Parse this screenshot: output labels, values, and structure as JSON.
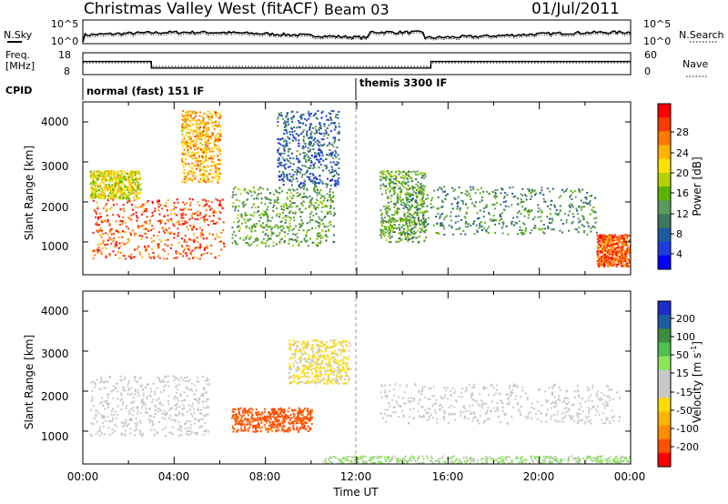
{
  "header": {
    "station": "Christmas Valley West (fitACF)",
    "beam": "Beam 03",
    "date": "01/Jul/2011"
  },
  "panels": {
    "noise": {
      "left_label": "N.Sky",
      "right_label": "N.Search",
      "ticks_left": [
        "10^5",
        "10^0"
      ],
      "ticks_right": [
        "10^5",
        "10^0"
      ]
    },
    "freq": {
      "left_label_1": "Freq.",
      "left_label_2": "[MHz]",
      "ticks_left": [
        "18",
        "8"
      ],
      "right_label": "Nave",
      "ticks_right": [
        "60",
        "0"
      ]
    },
    "cpid": {
      "label": "CPID",
      "modes": [
        "normal (fast) 151 IF",
        "themis 3300 IF"
      ]
    }
  },
  "axes": {
    "ylabel": "Slant Range [km]",
    "xlabel": "Time UT",
    "y_ticks": [
      "4000",
      "3000",
      "2000",
      "1000"
    ],
    "x_ticks": [
      "00:00",
      "04:00",
      "08:00",
      "12:00",
      "16:00",
      "20:00",
      "00:00"
    ]
  },
  "power_scale": {
    "label": "Power [dB]",
    "ticks": [
      "28",
      "24",
      "20",
      "16",
      "12",
      "8",
      "4"
    ],
    "colors": [
      "#ff0000",
      "#f63c00",
      "#ff7800",
      "#ffb400",
      "#ffe100",
      "#b4d200",
      "#5ab400",
      "#5a9b5a",
      "#3c785a",
      "#1e5aa0",
      "#1e3cdc",
      "#0000ff"
    ]
  },
  "velocity_scale": {
    "label": "Velocity [m s",
    "label_sup": "-1",
    "label_end": "]",
    "ticks": [
      "200",
      "100",
      "50",
      "15",
      "-15",
      "-50",
      "-100",
      "-200"
    ],
    "colors": [
      "#1e2dc8",
      "#1e5aa0",
      "#3c8c3c",
      "#50be50",
      "#8ce65a",
      "#c8c8c8",
      "#c8c8c8",
      "#ffdc00",
      "#ffb400",
      "#ff8c00",
      "#ff5000",
      "#ff0000"
    ]
  },
  "chart_data": {
    "type": "heatmap",
    "x_range": [
      "00:00",
      "24:00"
    ],
    "y_range": [
      180,
      4500
    ],
    "power_db_range": [
      0,
      30
    ],
    "velocity_range": [
      -250,
      250
    ],
    "cpid_switch_time": "12:00",
    "frequency_steps": [
      {
        "from": "00:00",
        "to": "03:00",
        "mhz": 14
      },
      {
        "from": "03:00",
        "to": "15:15",
        "mhz": 11
      },
      {
        "from": "15:15",
        "to": "24:00",
        "mhz": 14
      }
    ],
    "power_regions": [
      {
        "t0": 0.4,
        "t1": 6.2,
        "r0": 600,
        "r1": 2100,
        "db": 26
      },
      {
        "t0": 0.3,
        "t1": 2.5,
        "r0": 2100,
        "r1": 2800,
        "db": 18
      },
      {
        "t0": 4.3,
        "t1": 6.0,
        "r0": 2500,
        "r1": 4300,
        "db": 22
      },
      {
        "t0": 6.5,
        "t1": 11.0,
        "r0": 900,
        "r1": 2400,
        "db": 12
      },
      {
        "t0": 8.5,
        "t1": 11.2,
        "r0": 2400,
        "r1": 4300,
        "db": 6
      },
      {
        "t0": 13.0,
        "t1": 15.0,
        "r0": 1000,
        "r1": 2800,
        "db": 12
      },
      {
        "t0": 14.0,
        "t1": 22.5,
        "r0": 1200,
        "r1": 2400,
        "db": 10
      },
      {
        "t0": 22.5,
        "t1": 24.0,
        "r0": 400,
        "r1": 1200,
        "db": 26
      }
    ],
    "velocity_regions": [
      {
        "t0": 0.3,
        "t1": 5.5,
        "r0": 900,
        "r1": 2400,
        "v": 0
      },
      {
        "t0": 6.5,
        "t1": 10.0,
        "r0": 1000,
        "r1": 1600,
        "v": -200
      },
      {
        "t0": 9.0,
        "t1": 11.7,
        "r0": 2200,
        "r1": 3300,
        "v": -50
      },
      {
        "t0": 13.0,
        "t1": 23.5,
        "r0": 1200,
        "r1": 2200,
        "v": 0
      },
      {
        "t0": 10.5,
        "t1": 24.0,
        "r0": 200,
        "r1": 400,
        "v": 50
      }
    ]
  }
}
